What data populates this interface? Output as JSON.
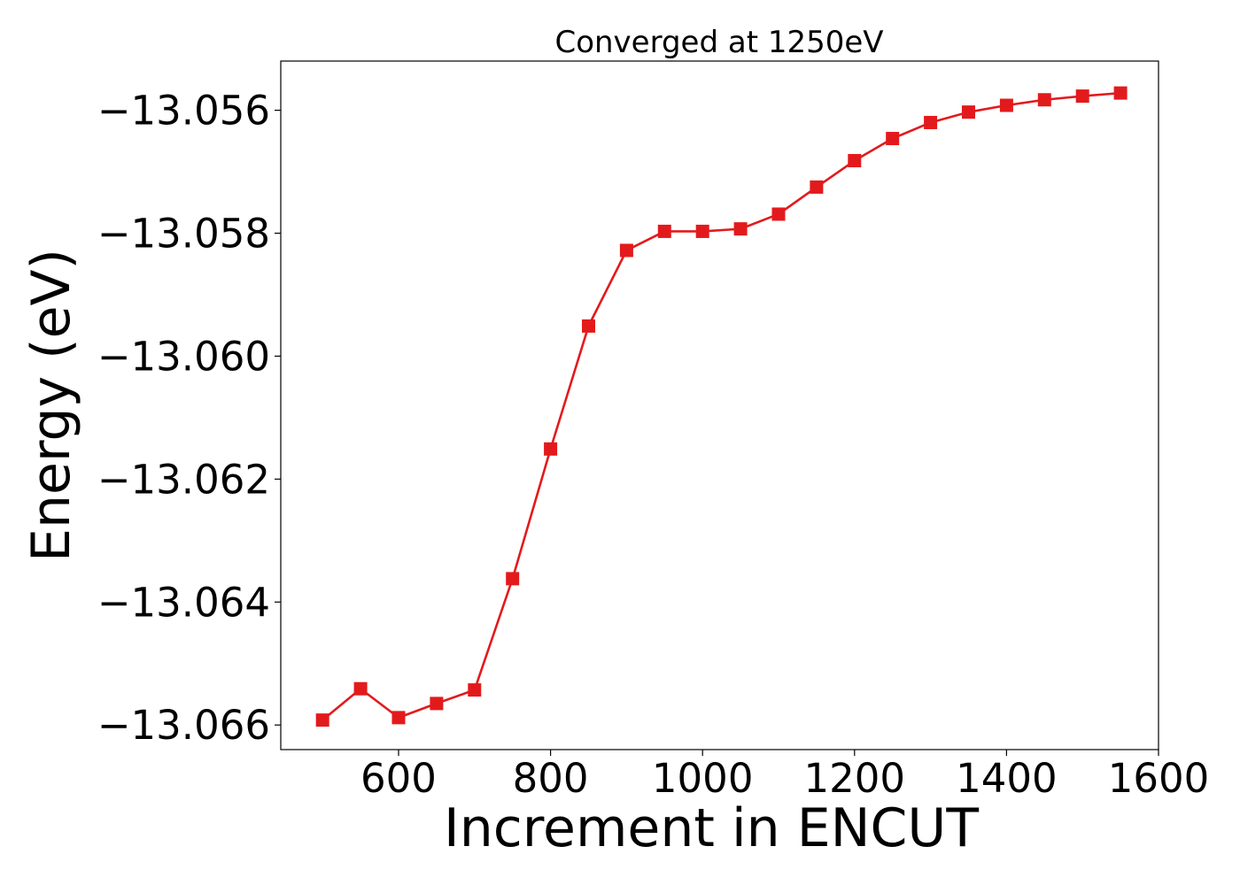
{
  "chart_data": {
    "type": "line",
    "title": "Converged at 1250eV",
    "xlabel": "Increment in ENCUT",
    "ylabel": "Energy (eV)",
    "xlim": [
      445,
      1600
    ],
    "ylim": [
      -13.0664,
      -13.0552
    ],
    "xticks": [
      600,
      800,
      1000,
      1200,
      1400,
      1600
    ],
    "xtick_labels": [
      "600",
      "800",
      "1000",
      "1200",
      "1400",
      "1600"
    ],
    "yticks": [
      -13.056,
      -13.058,
      -13.06,
      -13.062,
      -13.064,
      -13.066
    ],
    "ytick_labels": [
      "−13.056",
      "−13.058",
      "−13.060",
      "−13.062",
      "−13.064",
      "−13.066"
    ],
    "grid": false,
    "legend": false,
    "series": [
      {
        "color": "#e31a1c",
        "marker": "square",
        "x": [
          500,
          550,
          600,
          650,
          700,
          750,
          800,
          850,
          900,
          950,
          1000,
          1050,
          1100,
          1150,
          1200,
          1250,
          1300,
          1350,
          1400,
          1450,
          1500,
          1550
        ],
        "y": [
          -13.06592,
          -13.06541,
          -13.06588,
          -13.06565,
          -13.06543,
          -13.06362,
          -13.06151,
          -13.05951,
          -13.05828,
          -13.05797,
          -13.05797,
          -13.05793,
          -13.05769,
          -13.05725,
          -13.05682,
          -13.05646,
          -13.0562,
          -13.05603,
          -13.05592,
          -13.05583,
          -13.05577,
          -13.05572
        ]
      }
    ]
  }
}
